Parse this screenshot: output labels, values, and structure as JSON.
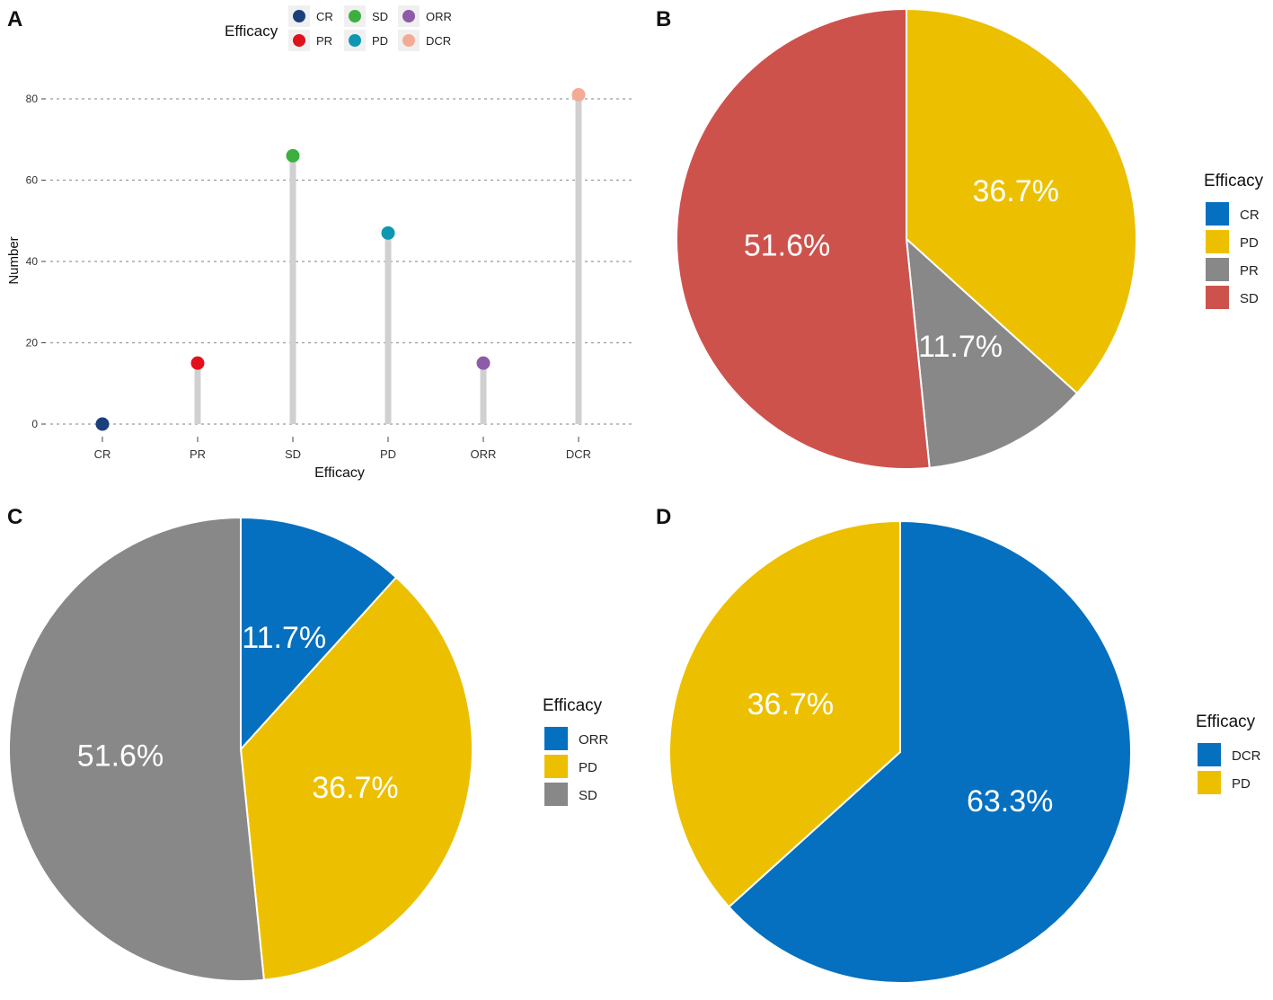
{
  "panels": {
    "a": "A",
    "b": "B",
    "c": "C",
    "d": "D"
  },
  "chart_data": [
    {
      "panel": "A",
      "type": "lollipop",
      "title": "",
      "xlabel": "Efficacy",
      "ylabel": "Number",
      "ylim": [
        0,
        85
      ],
      "yticks": [
        0,
        20,
        40,
        60,
        80
      ],
      "grid": true,
      "legend_title": "Efficacy",
      "legend_position": "top",
      "categories": [
        "CR",
        "PR",
        "SD",
        "PD",
        "ORR",
        "DCR"
      ],
      "values": [
        0,
        15,
        66,
        47,
        15,
        81
      ],
      "colors": [
        "#1a3f7c",
        "#e2101b",
        "#3bb03e",
        "#0d98b0",
        "#8d5ba8",
        "#f4ab95"
      ],
      "legend_order": [
        "CR",
        "SD",
        "ORR",
        "PR",
        "PD",
        "DCR"
      ]
    },
    {
      "panel": "B",
      "type": "pie",
      "legend_title": "Efficacy",
      "legend_position": "right",
      "slices": [
        {
          "label": "CR",
          "value": 0,
          "percent_label": "",
          "color": "#0570c0"
        },
        {
          "label": "PD",
          "value": 36.7,
          "percent_label": "36.7%",
          "color": "#ecc000"
        },
        {
          "label": "PR",
          "value": 11.7,
          "percent_label": "11.7%",
          "color": "#888888"
        },
        {
          "label": "SD",
          "value": 51.6,
          "percent_label": "51.6%",
          "color": "#ce524c"
        }
      ]
    },
    {
      "panel": "C",
      "type": "pie",
      "legend_title": "Efficacy",
      "legend_position": "right",
      "slices": [
        {
          "label": "ORR",
          "value": 11.7,
          "percent_label": "11.7%",
          "color": "#0570c0"
        },
        {
          "label": "PD",
          "value": 36.7,
          "percent_label": "36.7%",
          "color": "#ecc000"
        },
        {
          "label": "SD",
          "value": 51.6,
          "percent_label": "51.6%",
          "color": "#888888"
        }
      ]
    },
    {
      "panel": "D",
      "type": "pie",
      "legend_title": "Efficacy",
      "legend_position": "right",
      "slices": [
        {
          "label": "DCR",
          "value": 63.3,
          "percent_label": "63.3%",
          "color": "#0570c0"
        },
        {
          "label": "PD",
          "value": 36.7,
          "percent_label": "36.7%",
          "color": "#ecc000"
        }
      ]
    }
  ]
}
